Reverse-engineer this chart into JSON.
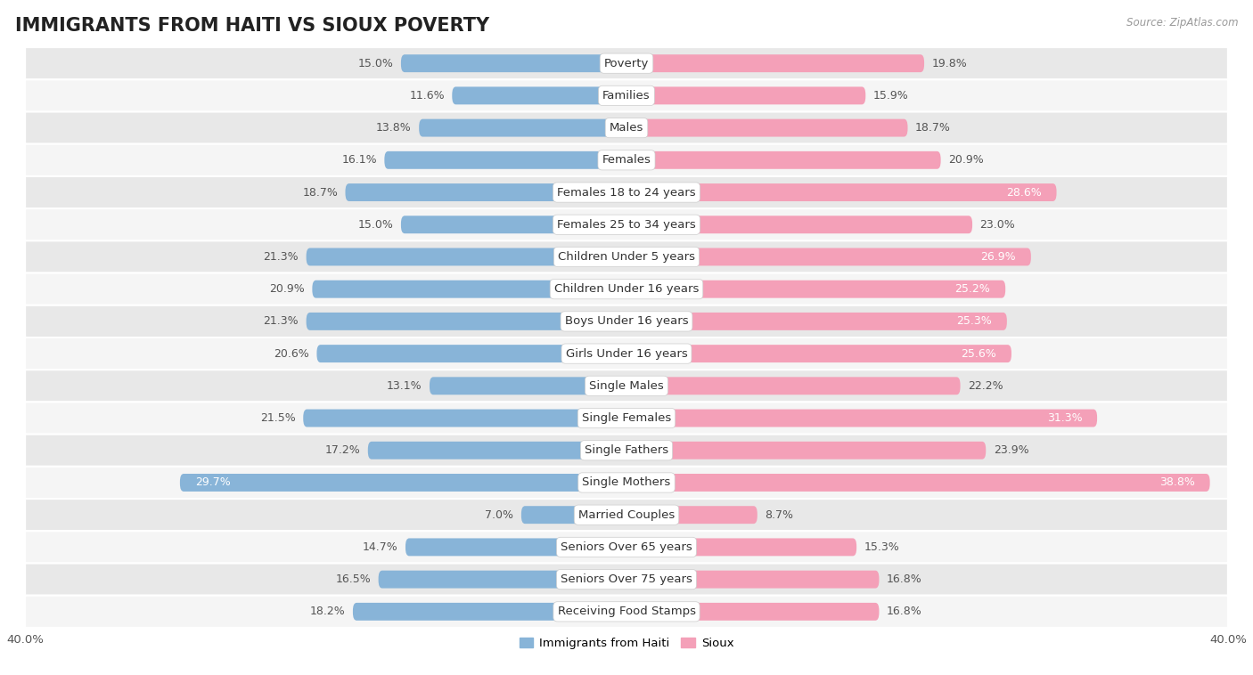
{
  "title": "IMMIGRANTS FROM HAITI VS SIOUX POVERTY",
  "source": "Source: ZipAtlas.com",
  "categories": [
    "Poverty",
    "Families",
    "Males",
    "Females",
    "Females 18 to 24 years",
    "Females 25 to 34 years",
    "Children Under 5 years",
    "Children Under 16 years",
    "Boys Under 16 years",
    "Girls Under 16 years",
    "Single Males",
    "Single Females",
    "Single Fathers",
    "Single Mothers",
    "Married Couples",
    "Seniors Over 65 years",
    "Seniors Over 75 years",
    "Receiving Food Stamps"
  ],
  "haiti_values": [
    15.0,
    11.6,
    13.8,
    16.1,
    18.7,
    15.0,
    21.3,
    20.9,
    21.3,
    20.6,
    13.1,
    21.5,
    17.2,
    29.7,
    7.0,
    14.7,
    16.5,
    18.2
  ],
  "sioux_values": [
    19.8,
    15.9,
    18.7,
    20.9,
    28.6,
    23.0,
    26.9,
    25.2,
    25.3,
    25.6,
    22.2,
    31.3,
    23.9,
    38.8,
    8.7,
    15.3,
    16.8,
    16.8
  ],
  "haiti_color": "#88b4d8",
  "sioux_color": "#f4a0b8",
  "background_color": "#ffffff",
  "row_even_color": "#e8e8e8",
  "row_odd_color": "#f5f5f5",
  "axis_max": 40.0,
  "legend_haiti": "Immigrants from Haiti",
  "legend_sioux": "Sioux",
  "title_fontsize": 15,
  "label_fontsize": 9.5,
  "value_fontsize": 9
}
